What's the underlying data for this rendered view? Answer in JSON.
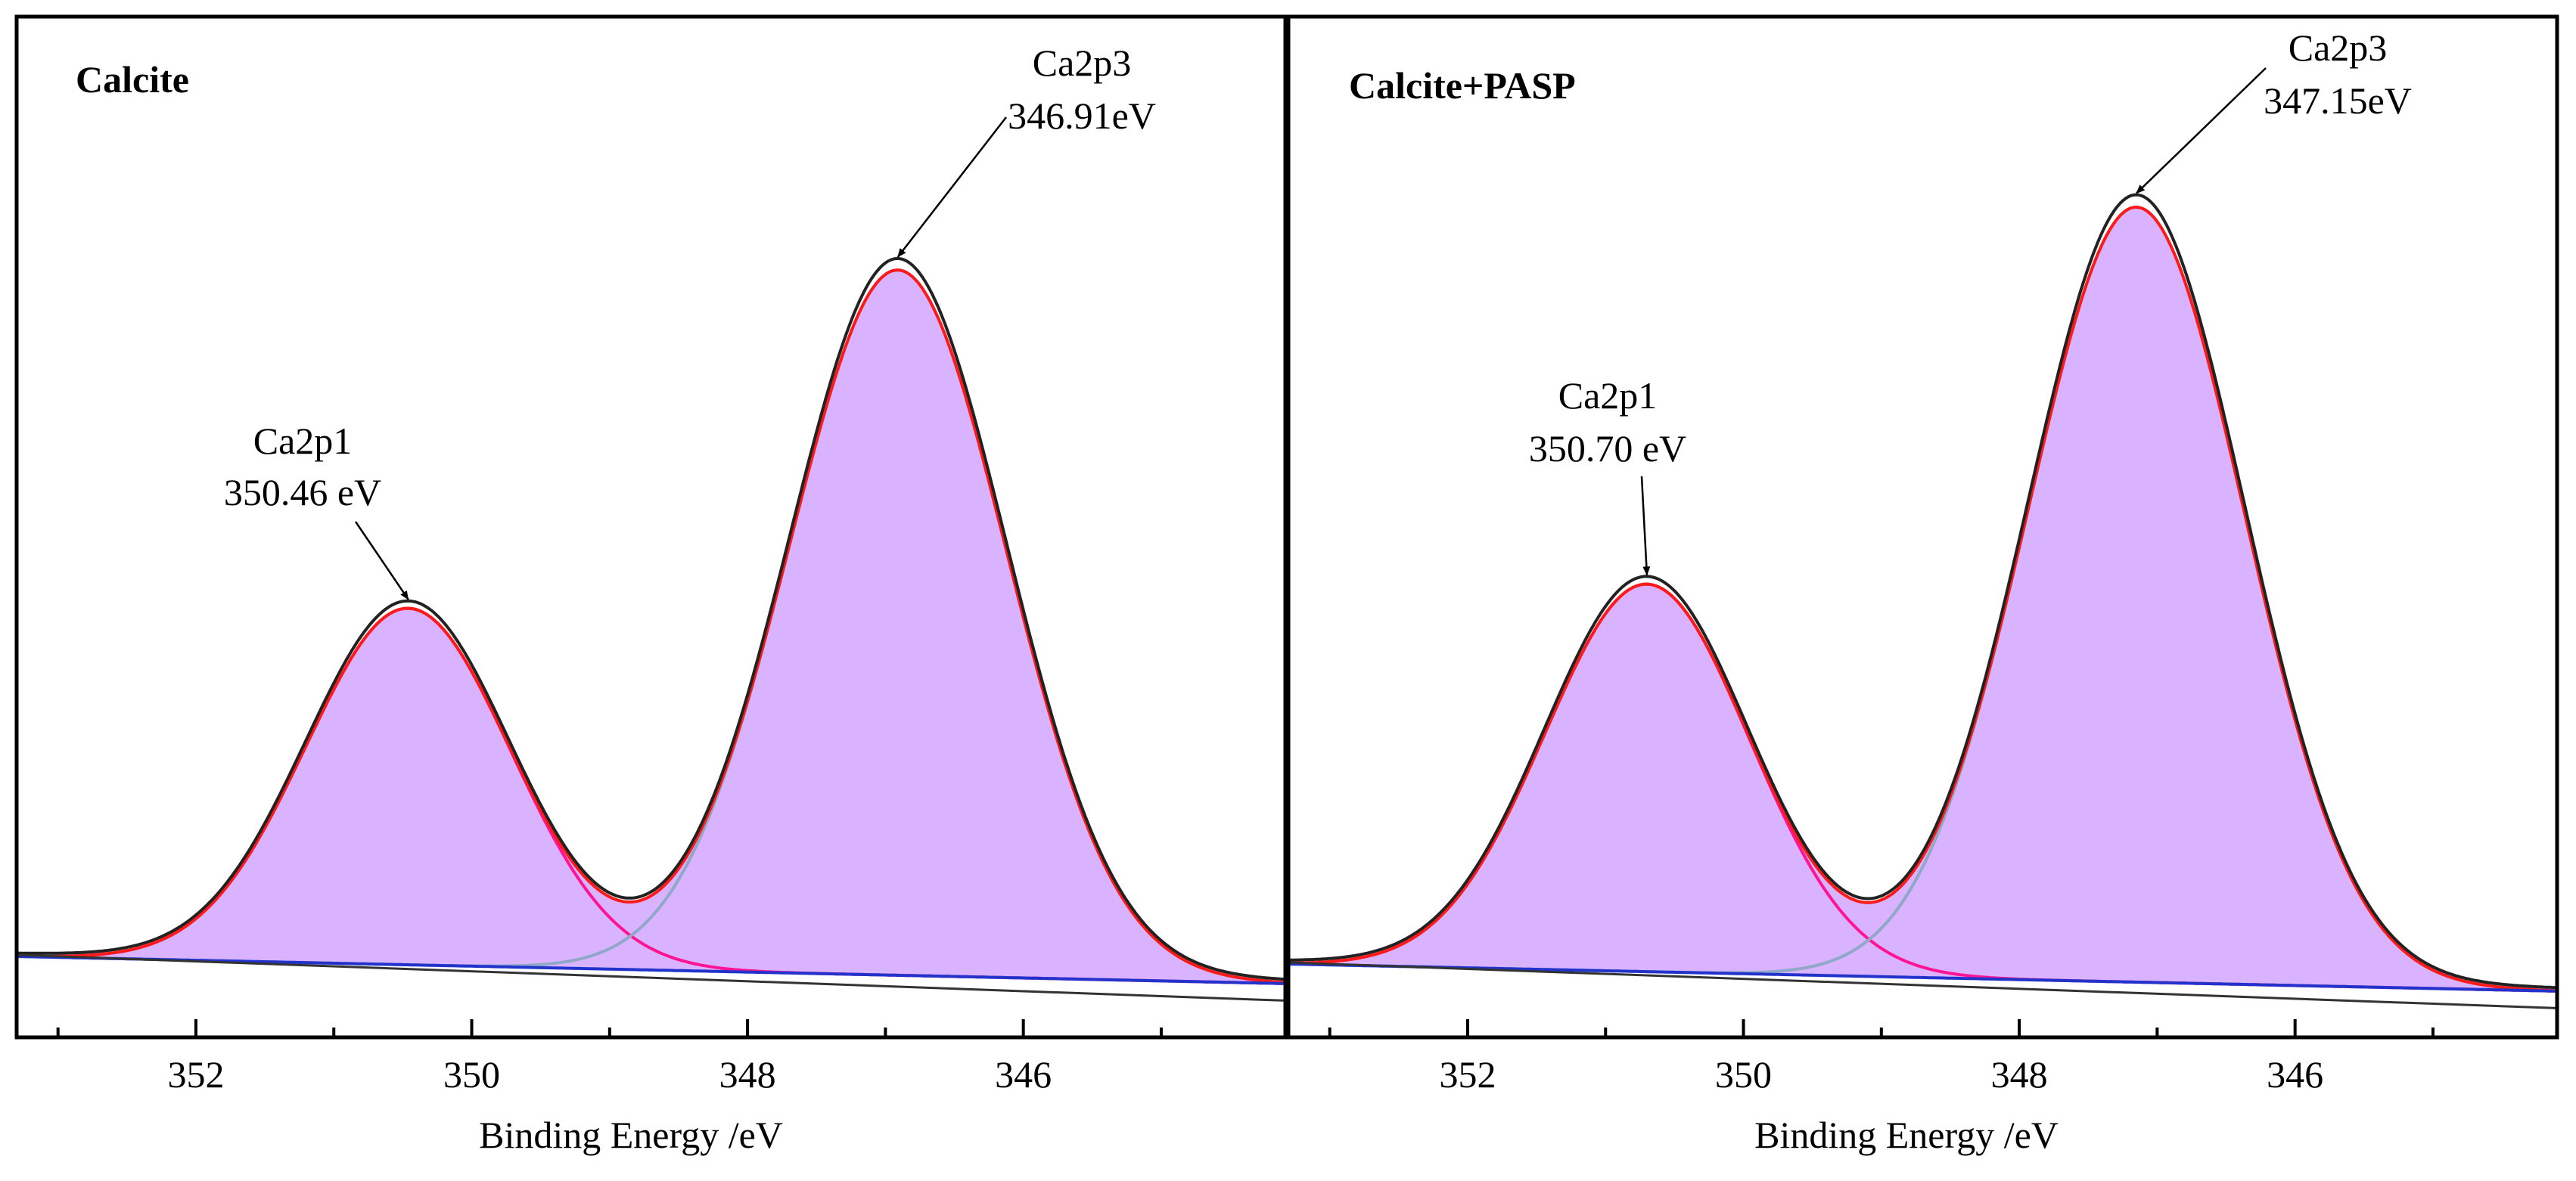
{
  "chart_data": [
    {
      "type": "area",
      "title": "Calcite",
      "xlabel": "Binding Energy /eV",
      "ylabel": "",
      "x_reversed": true,
      "xlim": [
        353.3,
        344.1
      ],
      "xticks": [
        352,
        350,
        348,
        346
      ],
      "xticks_minor": [
        353,
        351,
        349,
        347,
        345
      ],
      "yticks": [],
      "grid": false,
      "background_start": 0.0,
      "background_end": -0.035,
      "series": [
        {
          "label": "Ca2p1",
          "center": 350.46,
          "height": 0.46,
          "fwhm": 1.75,
          "color": "#ff1493"
        },
        {
          "label": "Ca2p3",
          "center": 346.91,
          "height": 0.91,
          "fwhm": 1.85,
          "color": "#8fa8c8"
        }
      ],
      "annotations": [
        {
          "name": "Ca2p1",
          "line1": "Ca2p1",
          "line2": "350.46 eV",
          "peak_x": 350.46
        },
        {
          "name": "Ca2p3",
          "line1": "Ca2p3",
          "line2": "346.91eV",
          "peak_x": 346.91
        }
      ],
      "colors": {
        "fill": "#d9b3ff",
        "envelope": "#222222",
        "fit": "#ff1a1a",
        "background": "#2233cc",
        "baseline": "#333333"
      }
    },
    {
      "type": "area",
      "title": "Calcite+PASP",
      "xlabel": "Binding Energy /eV",
      "ylabel": "",
      "x_reversed": true,
      "xlim": [
        353.3,
        344.1
      ],
      "xticks": [
        352,
        350,
        348,
        346
      ],
      "xticks_minor": [
        353,
        351,
        349,
        347,
        345
      ],
      "yticks": [],
      "grid": false,
      "background_start": 0.0,
      "background_end": -0.035,
      "series": [
        {
          "label": "Ca2p1",
          "center": 350.7,
          "height": 0.5,
          "fwhm": 1.75,
          "color": "#ff1493"
        },
        {
          "label": "Ca2p3",
          "center": 347.15,
          "height": 1.0,
          "fwhm": 1.85,
          "color": "#8fa8c8"
        }
      ],
      "annotations": [
        {
          "name": "Ca2p1",
          "line1": "Ca2p1",
          "line2": "350.70 eV",
          "peak_x": 350.7
        },
        {
          "name": "Ca2p3",
          "line1": "Ca2p3",
          "line2": "347.15eV",
          "peak_x": 347.15
        }
      ],
      "colors": {
        "fill": "#d9b3ff",
        "envelope": "#222222",
        "fit": "#ff1a1a",
        "background": "#2233cc",
        "baseline": "#333333"
      }
    }
  ]
}
